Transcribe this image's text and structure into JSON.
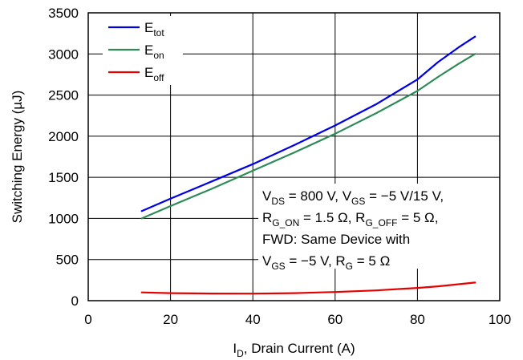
{
  "chart_data": {
    "type": "line",
    "xlabel": "I_D, Drain Current (A)",
    "xlabel_parts": {
      "main": "I",
      "sub": "D",
      "rest": ", Drain Current (A)"
    },
    "ylabel": "Switching Energy (µJ)",
    "xlim": [
      0,
      100
    ],
    "ylim": [
      0,
      3500
    ],
    "xticks": [
      0,
      20,
      40,
      60,
      80,
      100
    ],
    "yticks": [
      0,
      500,
      1000,
      1500,
      2000,
      2500,
      3000,
      3500
    ],
    "grid": true,
    "legend_position": "top-left",
    "series": [
      {
        "name": "E_tot",
        "label_main": "E",
        "label_sub": "tot",
        "color": "#0000e6",
        "x": [
          13,
          20,
          30,
          40,
          50,
          60,
          70,
          80,
          85,
          90,
          94
        ],
        "y": [
          1090,
          1240,
          1450,
          1660,
          1890,
          2130,
          2390,
          2690,
          2900,
          3080,
          3210
        ]
      },
      {
        "name": "E_on",
        "label_main": "E",
        "label_sub": "on",
        "color": "#2e8b57",
        "x": [
          13,
          20,
          30,
          40,
          50,
          60,
          70,
          80,
          85,
          90,
          94
        ],
        "y": [
          1000,
          1150,
          1360,
          1580,
          1800,
          2030,
          2280,
          2550,
          2720,
          2880,
          3000
        ]
      },
      {
        "name": "E_off",
        "label_main": "E",
        "label_sub": "off",
        "color": "#e60000",
        "x": [
          13,
          20,
          30,
          40,
          50,
          60,
          70,
          80,
          85,
          90,
          94
        ],
        "y": [
          100,
          92,
          87,
          86,
          92,
          105,
          125,
          155,
          175,
          200,
          220
        ]
      }
    ],
    "annotation": {
      "lines": [
        [
          {
            "t": "V"
          },
          {
            "t": "DS",
            "sub": true
          },
          {
            "t": " = 800 V, V"
          },
          {
            "t": "GS",
            "sub": true
          },
          {
            "t": " = −5 V/15 V,"
          }
        ],
        [
          {
            "t": "R"
          },
          {
            "t": "G_ON",
            "sub": true
          },
          {
            "t": " = 1.5 Ω, R"
          },
          {
            "t": "G_OFF",
            "sub": true
          },
          {
            "t": " = 5 Ω,"
          }
        ],
        [
          {
            "t": "FWD: Same Device with"
          }
        ],
        [
          {
            "t": "V"
          },
          {
            "t": "GS",
            "sub": true
          },
          {
            "t": " = −5 V, R"
          },
          {
            "t": "G",
            "sub": true
          },
          {
            "t": " = 5 Ω"
          }
        ]
      ]
    }
  }
}
